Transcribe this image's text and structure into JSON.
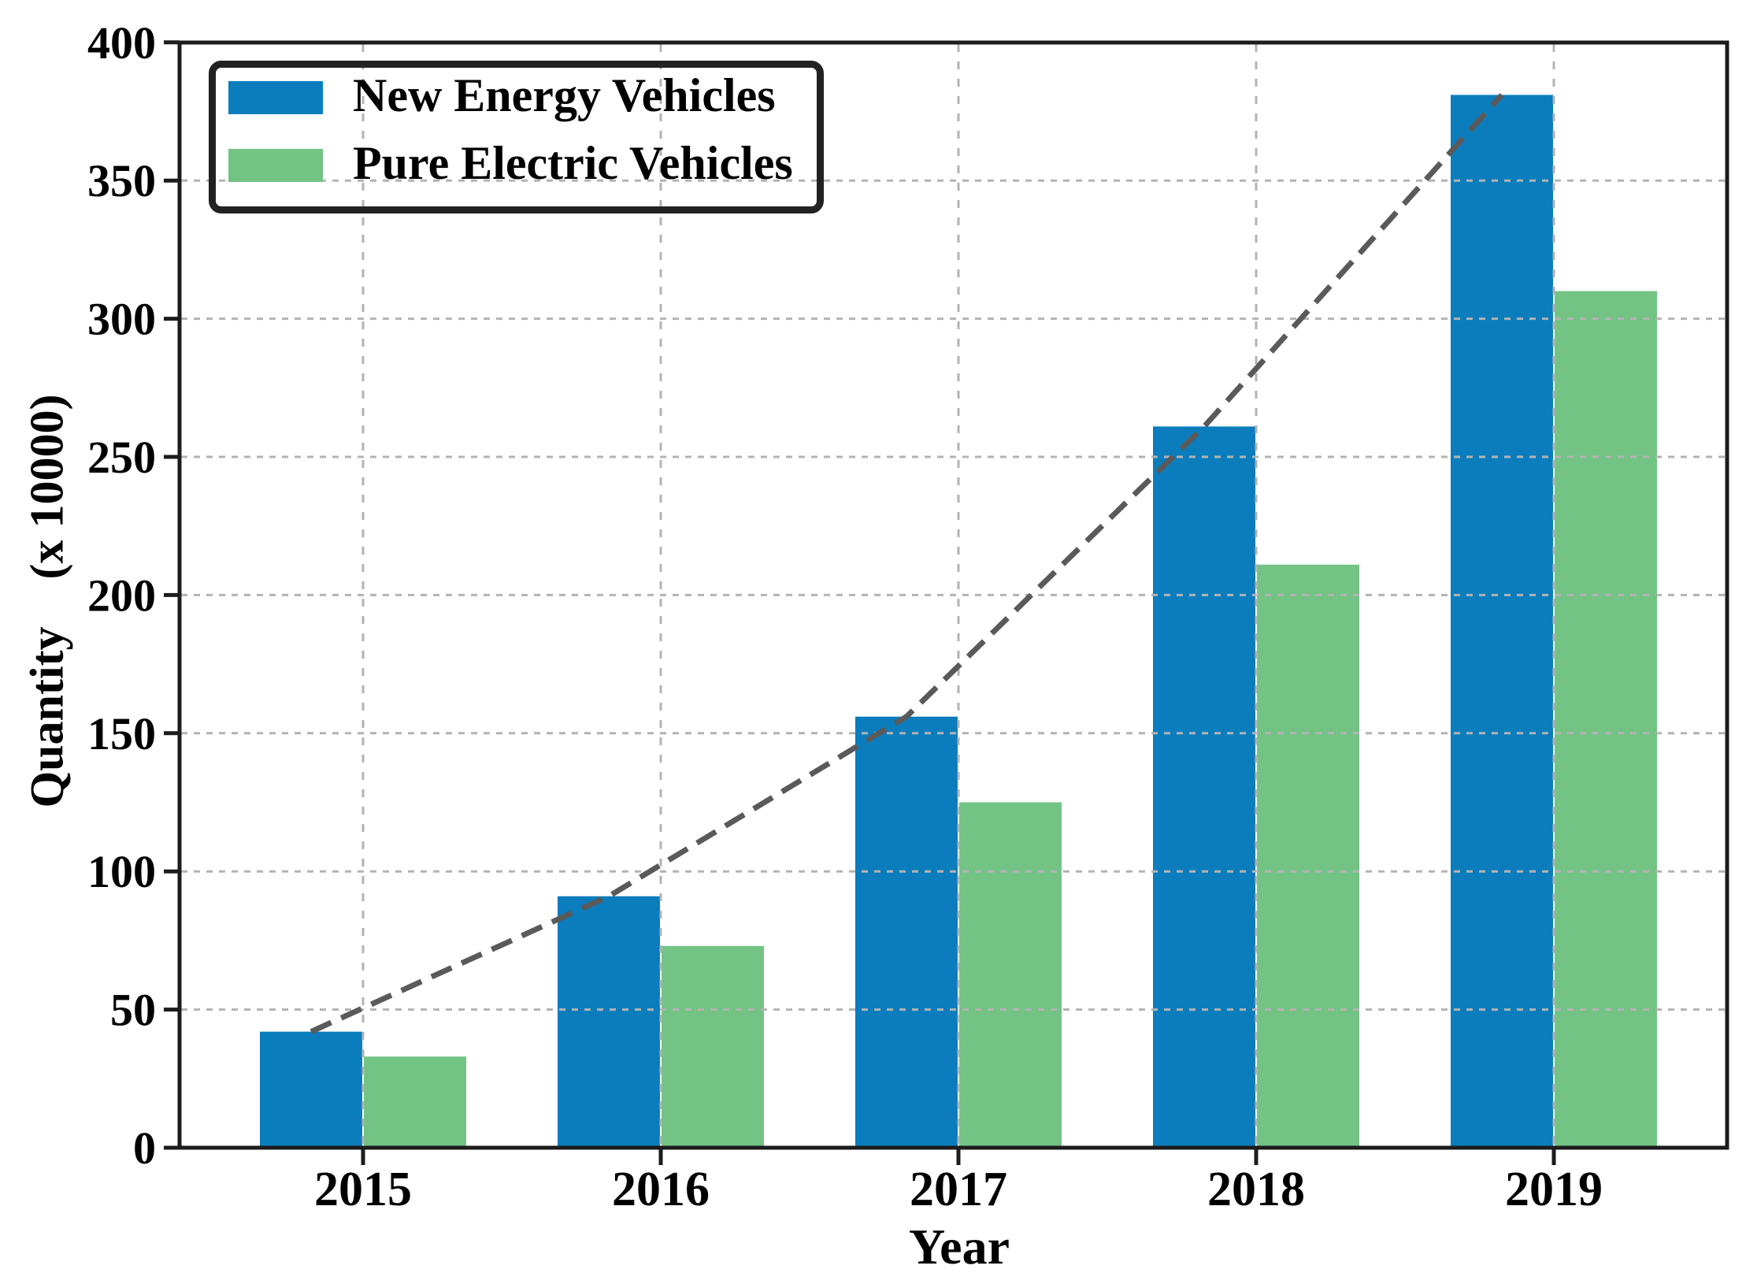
{
  "figure": {
    "background": "#ffffff"
  },
  "chart_data": {
    "type": "bar",
    "title": "",
    "categories": [
      "2015",
      "2016",
      "2017",
      "2018",
      "2019"
    ],
    "series": [
      {
        "name": "New Energy Vehicles",
        "color": "#0b7dbd",
        "values": [
          42,
          91,
          156,
          261,
          381
        ]
      },
      {
        "name": "Pure Electric Vehicles",
        "color": "#73c385",
        "values": [
          33,
          73,
          125,
          211,
          310
        ]
      }
    ],
    "trend_line": {
      "follows": "New Energy Vehicles",
      "values": [
        42,
        91,
        156,
        261,
        381
      ],
      "color": "#5a5a5a",
      "style": "dashed"
    },
    "xlabel": "Year",
    "ylabel": "Quantity    (x 10000)",
    "ylim": [
      0,
      400
    ],
    "yticks": [
      0,
      50,
      100,
      150,
      200,
      250,
      300,
      350,
      400
    ],
    "grid": {
      "show": true,
      "style": "dashed",
      "color": "#b3b3b3"
    },
    "axis_color": "#1c1c1c",
    "legend": {
      "position": "upper-left",
      "border_color": "#222222"
    }
  }
}
